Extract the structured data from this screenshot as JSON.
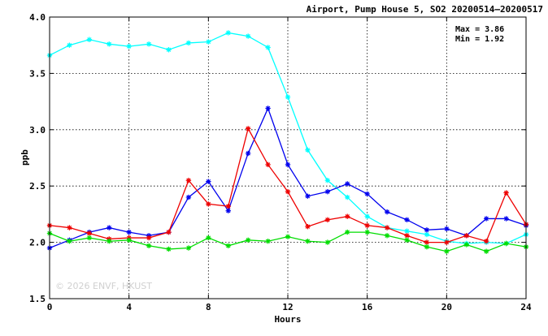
{
  "chart_data": {
    "type": "line",
    "title": "Airport, Pump House 5, SO2 20200514–20200517",
    "xlabel": "Hours",
    "ylabel": "ppb",
    "xlim": [
      0,
      24
    ],
    "ylim": [
      1.5,
      4.0
    ],
    "x_ticks": [
      0,
      4,
      8,
      12,
      16,
      20,
      24
    ],
    "y_ticks": [
      "1.5",
      "2.0",
      "2.5",
      "3.0",
      "3.5",
      "4.0"
    ],
    "grid": true,
    "marker": "asterisk",
    "annotations": {
      "max": "Max = 3.86",
      "min": "Min = 1.92"
    },
    "watermark": "© 2026  ENVF, HKUST",
    "x": [
      0,
      1,
      2,
      3,
      4,
      5,
      6,
      7,
      8,
      9,
      10,
      11,
      12,
      13,
      14,
      15,
      16,
      17,
      18,
      19,
      20,
      21,
      22,
      23,
      24
    ],
    "series": [
      {
        "color": "#00ffff",
        "values": [
          3.66,
          3.75,
          3.8,
          3.76,
          3.74,
          3.76,
          3.71,
          3.77,
          3.78,
          3.86,
          3.83,
          3.73,
          3.29,
          2.82,
          2.55,
          2.4,
          2.23,
          2.13,
          2.1,
          2.07,
          2.01,
          1.99,
          2.0,
          1.99,
          2.07
        ]
      },
      {
        "color": "#0000ee",
        "values": [
          1.95,
          2.02,
          2.09,
          2.13,
          2.09,
          2.06,
          2.09,
          2.4,
          2.54,
          2.28,
          2.79,
          3.19,
          2.69,
          2.41,
          2.45,
          2.52,
          2.43,
          2.27,
          2.2,
          2.11,
          2.12,
          2.06,
          2.21,
          2.21,
          2.15
        ]
      },
      {
        "color": "#ee0000",
        "values": [
          2.15,
          2.13,
          2.08,
          2.03,
          2.04,
          2.04,
          2.09,
          2.55,
          2.34,
          2.32,
          3.01,
          2.69,
          2.45,
          2.14,
          2.2,
          2.23,
          2.15,
          2.13,
          2.06,
          2.0,
          2.0,
          2.06,
          2.01,
          2.44,
          2.16
        ]
      },
      {
        "color": "#00dd00",
        "values": [
          2.08,
          2.01,
          2.04,
          2.01,
          2.02,
          1.97,
          1.94,
          1.95,
          2.04,
          1.97,
          2.02,
          2.01,
          2.05,
          2.01,
          2.0,
          2.09,
          2.09,
          2.06,
          2.02,
          1.96,
          1.92,
          1.98,
          1.92,
          1.99,
          1.96
        ]
      }
    ]
  }
}
